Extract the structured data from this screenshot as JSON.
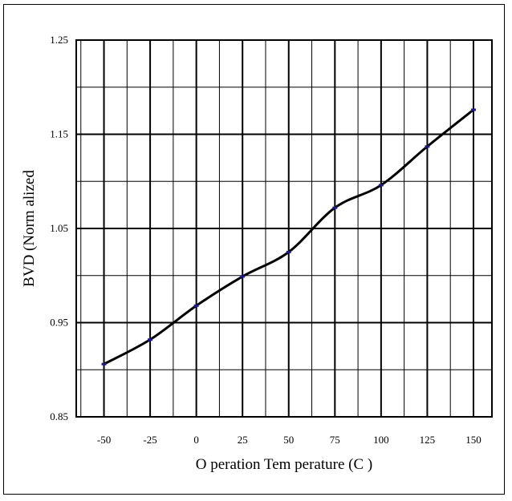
{
  "chart_data": {
    "type": "line",
    "title": "",
    "xlabel": "O peration Tem perature (C )",
    "ylabel": "BVD (Norm alized",
    "x_ticks": [
      "-50",
      "-25",
      "0",
      "25",
      "50",
      "75",
      "100",
      "125",
      "150"
    ],
    "y_ticks": [
      "0.85",
      "0.95",
      "1.05",
      "1.15",
      "1.25"
    ],
    "xlim": [
      -65,
      160
    ],
    "ylim": [
      0.85,
      1.25
    ],
    "grid": true,
    "series": [
      {
        "color": "#000000",
        "marker_color": "#1a1a8c",
        "x": [
          -50,
          -25,
          0,
          25,
          50,
          75,
          100,
          125,
          150
        ],
        "y": [
          0.906,
          0.932,
          0.968,
          0.999,
          1.025,
          1.072,
          1.096,
          1.137,
          1.176
        ]
      }
    ]
  }
}
